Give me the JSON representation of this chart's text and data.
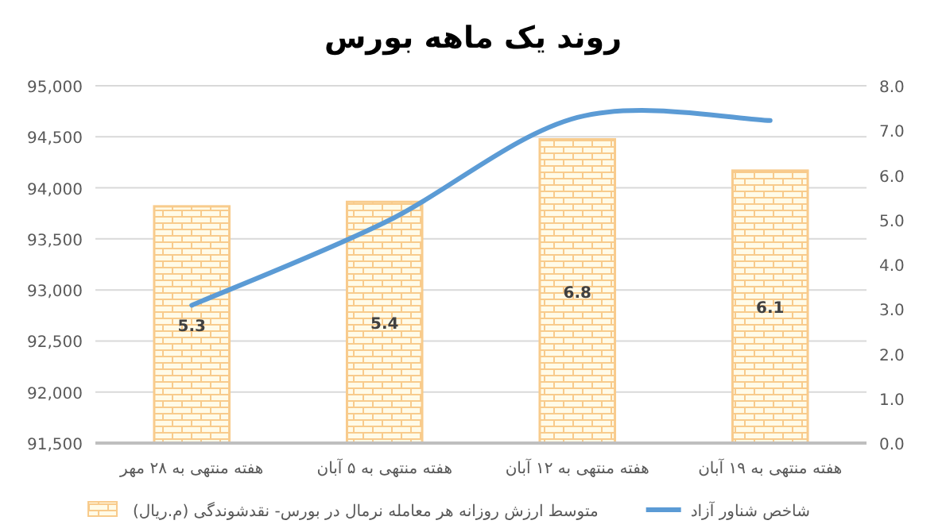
{
  "chart_data": {
    "type": "bar",
    "title": "روند یک ماهه بورس",
    "categories": [
      "هفته منتهی به ۲۸ مهر",
      "هفته منتهی به ۵ آبان",
      "هفته منتهی به ۱۲ آبان",
      "هفته منتهی به ۱۹ آبان"
    ],
    "series": [
      {
        "name": "متوسط ارزش روزانه هر معامله نرمال در بورس- نقدشوندگی (م.ریال)",
        "axis": "y2",
        "color": "#f8cb8c",
        "values": [
          5.3,
          5.4,
          6.8,
          6.1
        ],
        "value_labels": [
          "5.3",
          "5.4",
          "6.8",
          "6.1"
        ]
      },
      {
        "name": "شاخص شناور آزاد",
        "type": "line",
        "axis": "y",
        "color": "#5b9bd5",
        "values": [
          92850,
          93660,
          94690,
          94660
        ]
      }
    ],
    "ylim": [
      91500,
      95000
    ],
    "yticks": [
      {
        "value": 91500,
        "label": "91,500"
      },
      {
        "value": 92000,
        "label": "92,000"
      },
      {
        "value": 92500,
        "label": "92,500"
      },
      {
        "value": 93000,
        "label": "93,000"
      },
      {
        "value": 93500,
        "label": "93,500"
      },
      {
        "value": 94000,
        "label": "94,000"
      },
      {
        "value": 94500,
        "label": "94,500"
      },
      {
        "value": 95000,
        "label": "95,000"
      }
    ],
    "y2lim": [
      0,
      8
    ],
    "y2ticks": [
      {
        "value": 0,
        "label": "0.0"
      },
      {
        "value": 1,
        "label": "1.0"
      },
      {
        "value": 2,
        "label": "2.0"
      },
      {
        "value": 3,
        "label": "3.0"
      },
      {
        "value": 4,
        "label": "4.0"
      },
      {
        "value": 5,
        "label": "5.0"
      },
      {
        "value": 6,
        "label": "6.0"
      },
      {
        "value": 7,
        "label": "7.0"
      },
      {
        "value": 8,
        "label": "8.0"
      }
    ],
    "grid": "y",
    "legend": "bottom",
    "marker": "none",
    "line_style": "solid"
  }
}
